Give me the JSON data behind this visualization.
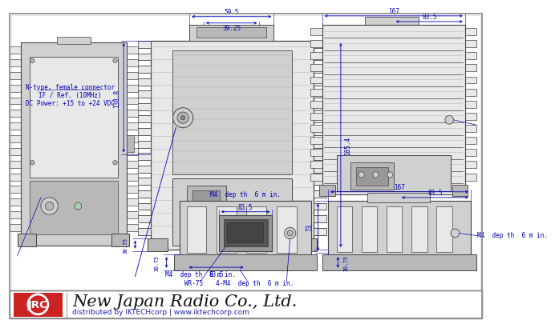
{
  "bg_color": "#ffffff",
  "border_color": "#999999",
  "dim_color": "#0000bb",
  "line_color": "#444444",
  "fill_light": "#e8e8e8",
  "fill_mid": "#d0d0d0",
  "fill_dark": "#b8b8b8",
  "jrc_red": "#cc2222",
  "title": "New Japan Radio Co., Ltd.",
  "subtitle": "distributed by IKTECHcorp | www.iktechcorp.com",
  "note1": "N-type, female connector",
  "note2": "IF / Ref. (10MHz)",
  "note3": "DC Power: +15 to +24 VDC",
  "dim_59_5": "59.5",
  "dim_39_25": "39.25",
  "dim_138_8": "138.8",
  "dim_185_4": "185.4",
  "dim_167": "167",
  "dim_83_5": "83.5",
  "dim_30_75": "30.75",
  "dim_73": "73",
  "lbl_m4_mid": "M4  dep th  6 m in.",
  "lbl_83_5": "83.5",
  "lbl_wr75": "WR-75",
  "lbl_4m4": "4-M4  dep th  6 m in.",
  "lbl_m4_right": "M4  dep th  6 m in."
}
